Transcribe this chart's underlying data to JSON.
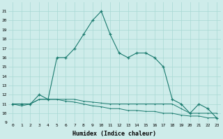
{
  "xlabel": "Humidex (Indice chaleur)",
  "x": [
    0,
    1,
    2,
    3,
    4,
    5,
    6,
    7,
    8,
    9,
    10,
    11,
    12,
    13,
    14,
    15,
    16,
    17,
    18,
    19,
    20,
    21,
    22,
    23
  ],
  "line1": [
    11,
    11,
    11,
    12,
    11.5,
    16,
    16,
    17,
    18.5,
    20,
    21,
    18.5,
    16.5,
    16,
    16.5,
    16.5,
    16,
    15,
    11.5,
    11,
    10,
    11,
    10.5,
    9.5
  ],
  "line2": [
    11,
    11,
    11,
    11.5,
    11.5,
    11.5,
    11.5,
    11.5,
    11.3,
    11.2,
    11.1,
    11.0,
    11.0,
    11.0,
    11.0,
    11.0,
    11.0,
    11.0,
    11.0,
    10.5,
    10.0,
    10.0,
    10.0,
    10.0
  ],
  "line3": [
    11,
    10.8,
    11,
    11.5,
    11.5,
    11.5,
    11.3,
    11.2,
    11.0,
    10.8,
    10.7,
    10.5,
    10.5,
    10.3,
    10.3,
    10.2,
    10.2,
    10.0,
    10.0,
    9.8,
    9.7,
    9.7,
    9.5,
    9.5
  ],
  "ylim": [
    9,
    22
  ],
  "xlim": [
    -0.5,
    23.5
  ],
  "yticks": [
    9,
    10,
    11,
    12,
    13,
    14,
    15,
    16,
    17,
    18,
    19,
    20,
    21
  ],
  "xticks": [
    0,
    1,
    2,
    3,
    4,
    5,
    6,
    7,
    8,
    9,
    10,
    11,
    12,
    13,
    14,
    15,
    16,
    17,
    18,
    19,
    20,
    21,
    22,
    23
  ],
  "line_color": "#1a7a6e",
  "bg_color": "#ceecea",
  "grid_color": "#a8d8d4"
}
